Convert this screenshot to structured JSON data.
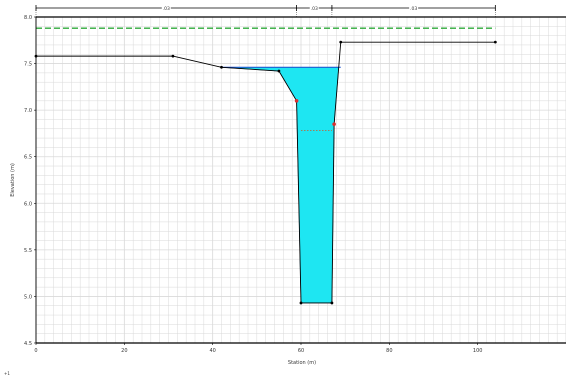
{
  "colors": {
    "ground": "#000000",
    "water": "#1ee6f2",
    "grid": "#d9d9d9",
    "dash": "#2eaa3a",
    "bank": "#d83030"
  },
  "chart_data": {
    "type": "area",
    "xlabel": "Station (m)",
    "ylabel": "Elevation (m)",
    "xlim": [
      0,
      120
    ],
    "ylim": [
      4.5,
      8.0
    ],
    "x_ticks": [
      0,
      20,
      40,
      60,
      80,
      100
    ],
    "y_ticks": [
      4.5,
      5.0,
      5.5,
      6.0,
      6.5,
      7.0,
      7.5,
      8.0
    ],
    "grid": true,
    "ground_profile": [
      {
        "x": 0,
        "y": 7.58
      },
      {
        "x": 31,
        "y": 7.58
      },
      {
        "x": 42,
        "y": 7.46
      },
      {
        "x": 55,
        "y": 7.42
      },
      {
        "x": 59,
        "y": 7.1
      },
      {
        "x": 60,
        "y": 4.93
      },
      {
        "x": 67,
        "y": 4.93
      },
      {
        "x": 67.5,
        "y": 6.85
      },
      {
        "x": 69,
        "y": 7.73
      },
      {
        "x": 104,
        "y": 7.73
      }
    ],
    "water_surface_elevation": 7.46,
    "water_extent": [
      42,
      69
    ],
    "bank_stations": [
      {
        "x": 59,
        "y": 7.1
      },
      {
        "x": 67.5,
        "y": 6.85
      }
    ],
    "dashed_line_elevation": 7.88,
    "dashed_line_extent": [
      0,
      104
    ],
    "dotted_line_elevation": 6.78,
    "dotted_line_extent": [
      60,
      67
    ],
    "reach_breaks": [
      0,
      59,
      67,
      104
    ],
    "reach_labels": [
      ".03",
      ".03",
      ".03"
    ],
    "footer_mark": "+1"
  }
}
